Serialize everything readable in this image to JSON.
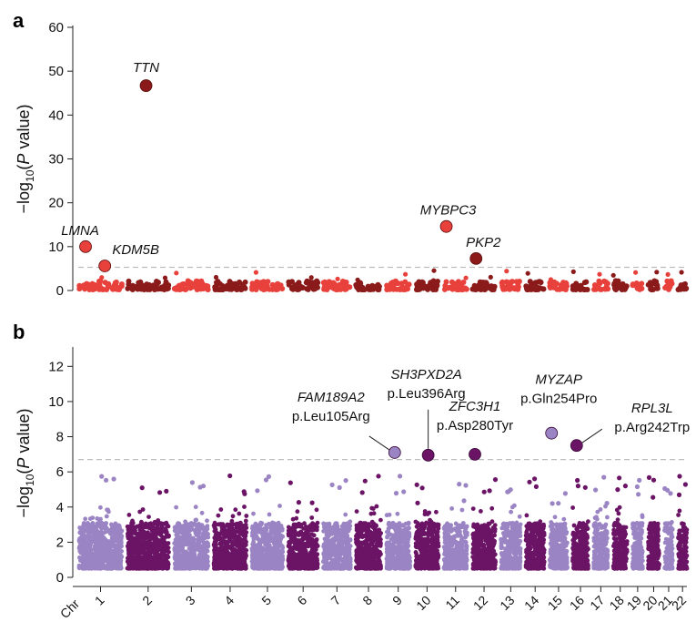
{
  "chart_data": [
    {
      "panel": "a",
      "type": "scatter",
      "subtype": "manhattan",
      "ylabel_prefix": "−log",
      "ylabel_sub": "10",
      "ylabel_paren": "(",
      "ylabel_italic": "P",
      "ylabel_suffix": " value)",
      "ylim": [
        0,
        60
      ],
      "yticks": [
        "0",
        "10",
        "20",
        "30",
        "40",
        "50",
        "60"
      ],
      "significance_threshold": 5.3,
      "colors": [
        "#e8413c",
        "#8b1a1a"
      ],
      "background_max": 4.0,
      "background_n": 40,
      "highlights": [
        {
          "gene": "LMNA",
          "chr": 1,
          "pos": 0.15,
          "y": 10.0,
          "color": "#e8413c"
        },
        {
          "gene": "KDM5B",
          "chr": 1,
          "pos": 0.6,
          "y": 5.6,
          "color": "#e8413c"
        },
        {
          "gene": "TTN",
          "chr": 2,
          "pos": 0.45,
          "y": 46.7,
          "color": "#8b1a1a"
        },
        {
          "gene": "MYBPC3",
          "chr": 11,
          "pos": 0.1,
          "y": 14.6,
          "color": "#e8413c"
        },
        {
          "gene": "PKP2",
          "chr": 12,
          "pos": 0.15,
          "y": 7.3,
          "color": "#8b1a1a"
        }
      ]
    },
    {
      "panel": "b",
      "type": "scatter",
      "subtype": "manhattan",
      "ylabel_prefix": "−log",
      "ylabel_sub": "10",
      "ylabel_paren": "(",
      "ylabel_italic": "P",
      "ylabel_suffix": " value)",
      "ylim": [
        0,
        13
      ],
      "yticks": [
        "0",
        "2",
        "4",
        "6",
        "8",
        "10",
        "12"
      ],
      "significance_threshold": 6.7,
      "colors": [
        "#9b84c3",
        "#6b1466"
      ],
      "background_max": 4.0,
      "background_n": 420,
      "highlights": [
        {
          "gene": "FAM189A2",
          "variant": "p.Leu105Arg",
          "chr": 9,
          "pos": 0.35,
          "y": 7.1,
          "color": "#9b84c3"
        },
        {
          "gene": "SH3PXD2A",
          "variant": "p.Leu396Arg",
          "chr": 10,
          "pos": 0.55,
          "y": 6.95,
          "color": "#6b1466"
        },
        {
          "gene": "ZFC3H1",
          "variant": "p.Asp280Tyr",
          "chr": 12,
          "pos": 0.1,
          "y": 7.0,
          "color": "#6b1466"
        },
        {
          "gene": "MYZAP",
          "variant": "p.Gln254Pro",
          "chr": 15,
          "pos": 0.1,
          "y": 8.2,
          "color": "#9b84c3"
        },
        {
          "gene": "RPL3L",
          "variant": "p.Arg242Trp",
          "chr": 16,
          "pos": 0.25,
          "y": 7.5,
          "color": "#6b1466"
        }
      ]
    }
  ],
  "x_axis": {
    "chr_prefix": "Chr",
    "chromosomes": [
      "1",
      "2",
      "3",
      "4",
      "5",
      "6",
      "7",
      "8",
      "9",
      "10",
      "11",
      "12",
      "13",
      "14",
      "15",
      "16",
      "17",
      "18",
      "19",
      "20",
      "21",
      "22"
    ],
    "relative_sizes": [
      249,
      242,
      198,
      190,
      181,
      171,
      159,
      145,
      138,
      134,
      135,
      133,
      114,
      107,
      102,
      90,
      83,
      80,
      59,
      64,
      47,
      51
    ]
  },
  "panel_letters": [
    "a",
    "b"
  ]
}
